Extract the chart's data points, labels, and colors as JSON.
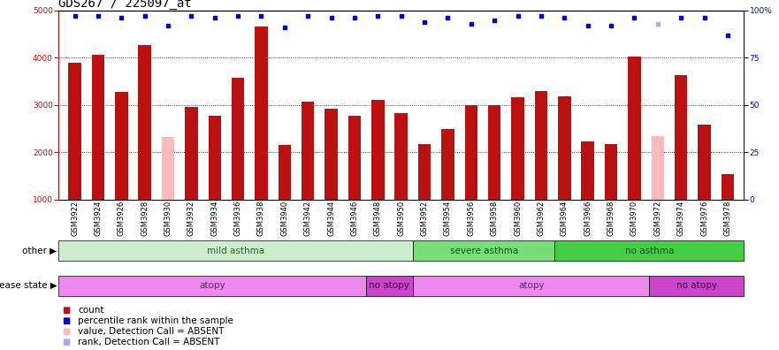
{
  "title": "GDS267 / 225097_at",
  "samples": [
    "GSM3922",
    "GSM3924",
    "GSM3926",
    "GSM3928",
    "GSM3930",
    "GSM3932",
    "GSM3934",
    "GSM3936",
    "GSM3938",
    "GSM3940",
    "GSM3942",
    "GSM3944",
    "GSM3946",
    "GSM3948",
    "GSM3950",
    "GSM3952",
    "GSM3954",
    "GSM3956",
    "GSM3958",
    "GSM3960",
    "GSM3962",
    "GSM3964",
    "GSM3966",
    "GSM3968",
    "GSM3970",
    "GSM3972",
    "GSM3974",
    "GSM3976",
    "GSM3978"
  ],
  "count_values": [
    3900,
    4060,
    3270,
    4260,
    2330,
    2960,
    2780,
    3570,
    4670,
    2150,
    3070,
    2930,
    2780,
    3100,
    2830,
    2180,
    2490,
    2990,
    2990,
    3170,
    3290,
    3190,
    2220,
    2170,
    4020,
    2340,
    3640,
    2590,
    1540
  ],
  "count_absent": [
    false,
    false,
    false,
    false,
    true,
    false,
    false,
    false,
    false,
    false,
    false,
    false,
    false,
    false,
    false,
    false,
    false,
    false,
    false,
    false,
    false,
    false,
    false,
    false,
    false,
    true,
    false,
    false,
    false
  ],
  "rank_values": [
    97,
    97,
    96,
    97,
    92,
    97,
    96,
    97,
    97,
    91,
    97,
    96,
    96,
    97,
    97,
    94,
    96,
    93,
    95,
    97,
    97,
    96,
    92,
    92,
    96,
    93,
    96,
    96,
    87
  ],
  "rank_absent": [
    false,
    false,
    false,
    false,
    false,
    false,
    false,
    false,
    false,
    false,
    false,
    false,
    false,
    false,
    false,
    false,
    false,
    false,
    false,
    false,
    false,
    false,
    false,
    false,
    false,
    true,
    false,
    false,
    false
  ],
  "bar_color_present": "#bb1111",
  "bar_color_absent": "#ffbbbb",
  "rank_color_present": "#0000cc",
  "rank_color_absent": "#aaaaee",
  "ylim_left": [
    1000,
    5000
  ],
  "ylim_right": [
    0,
    100
  ],
  "yticks_left": [
    1000,
    2000,
    3000,
    4000,
    5000
  ],
  "yticks_right": [
    0,
    25,
    50,
    75,
    100
  ],
  "ytick_right_labels": [
    "0",
    "25",
    "50",
    "75",
    "100%"
  ],
  "grid_values": [
    2000,
    3000,
    4000
  ],
  "other_groups": [
    {
      "label": "mild asthma",
      "start": 0,
      "end": 15,
      "color": "#cceecc",
      "text_color": "#226622"
    },
    {
      "label": "severe asthma",
      "start": 15,
      "end": 21,
      "color": "#77dd77",
      "text_color": "#115511"
    },
    {
      "label": "no asthma",
      "start": 21,
      "end": 29,
      "color": "#44cc44",
      "text_color": "#115511"
    }
  ],
  "disease_groups": [
    {
      "label": "atopy",
      "start": 0,
      "end": 13,
      "color": "#ee88ee",
      "text_color": "#662266"
    },
    {
      "label": "no atopy",
      "start": 13,
      "end": 15,
      "color": "#cc44cc",
      "text_color": "#440044"
    },
    {
      "label": "atopy",
      "start": 15,
      "end": 25,
      "color": "#ee88ee",
      "text_color": "#662266"
    },
    {
      "label": "no atopy",
      "start": 25,
      "end": 29,
      "color": "#cc44cc",
      "text_color": "#440044"
    }
  ],
  "legend_items": [
    {
      "label": "count",
      "color": "#bb1111"
    },
    {
      "label": "percentile rank within the sample",
      "color": "#0000cc"
    },
    {
      "label": "value, Detection Call = ABSENT",
      "color": "#ffbbbb"
    },
    {
      "label": "rank, Detection Call = ABSENT",
      "color": "#aaaaee"
    }
  ],
  "other_label": "other",
  "disease_label": "disease state",
  "bg_color": "#ffffff",
  "title_fontsize": 10,
  "tick_fontsize": 6.5,
  "label_fontsize": 7.5,
  "annotation_fontsize": 7.5,
  "legend_fontsize": 7.5
}
